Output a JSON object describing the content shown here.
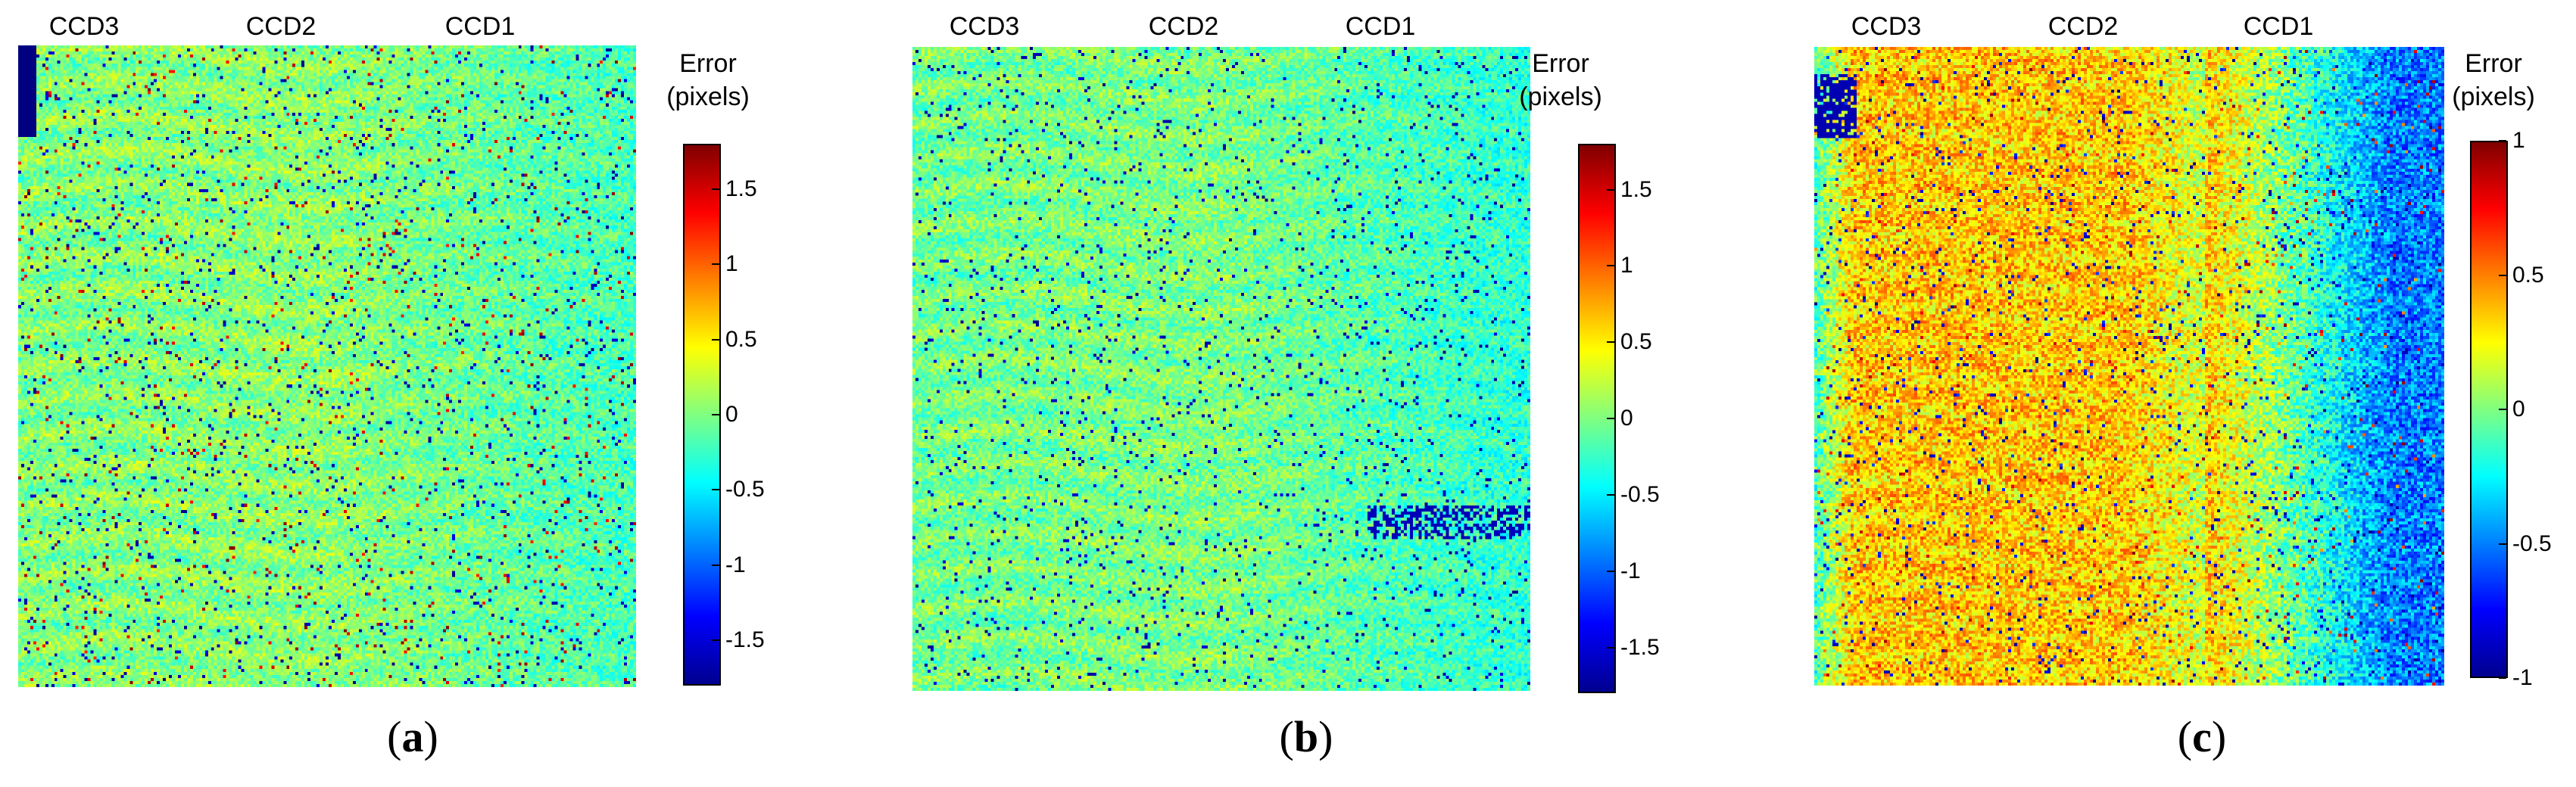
{
  "chart_data": [
    {
      "type": "heatmap",
      "panel_label": "a",
      "column_labels": [
        "CCD3",
        "CCD2",
        "CCD1"
      ],
      "colorbar_title": [
        "Error",
        "(pixels)"
      ],
      "colorbar_ticks": [
        -1.5,
        -1,
        -0.5,
        0,
        0.5,
        1,
        1.5
      ],
      "colorbar_tick_labels": [
        "-1.5",
        "-1",
        "-0.5",
        "0",
        "0.5",
        "1",
        "1.5"
      ],
      "clim": [
        -1.8,
        1.8
      ],
      "colormap": "jet",
      "regions": [
        {
          "column": "CCD3",
          "typical_error": 0.0
        },
        {
          "column": "CCD2",
          "typical_error": 0.05
        },
        {
          "column": "CCD1",
          "typical_error": -0.2
        }
      ]
    },
    {
      "type": "heatmap",
      "panel_label": "b",
      "column_labels": [
        "CCD3",
        "CCD2",
        "CCD1"
      ],
      "colorbar_title": [
        "Error",
        "(pixels)"
      ],
      "colorbar_ticks": [
        -1.5,
        -1,
        -0.5,
        0,
        0.5,
        1,
        1.5
      ],
      "colorbar_tick_labels": [
        "-1.5",
        "-1",
        "-0.5",
        "0",
        "0.5",
        "1",
        "1.5"
      ],
      "clim": [
        -1.8,
        1.8
      ],
      "colormap": "jet",
      "regions": [
        {
          "column": "CCD3",
          "typical_error": -0.05
        },
        {
          "column": "CCD2",
          "typical_error": 0.0
        },
        {
          "column": "CCD1",
          "typical_error": -0.3
        }
      ]
    },
    {
      "type": "heatmap",
      "panel_label": "c",
      "column_labels": [
        "CCD3",
        "CCD2",
        "CCD1"
      ],
      "colorbar_title": [
        "Error",
        "(pixels)"
      ],
      "colorbar_ticks": [
        -0.5,
        0,
        0.5,
        1
      ],
      "colorbar_tick_labels": [
        "-1",
        "-0.5",
        "0",
        "0.5",
        "1"
      ],
      "colorbar_all_ticks": [
        -1,
        -0.5,
        0,
        0.5,
        1
      ],
      "clim": [
        -1,
        1
      ],
      "colormap": "jet",
      "regions": [
        {
          "column": "CCD3",
          "typical_error": 0.35
        },
        {
          "column": "CCD2",
          "typical_error": 0.35
        },
        {
          "column": "CCD1",
          "typical_error": -0.5
        }
      ]
    }
  ]
}
